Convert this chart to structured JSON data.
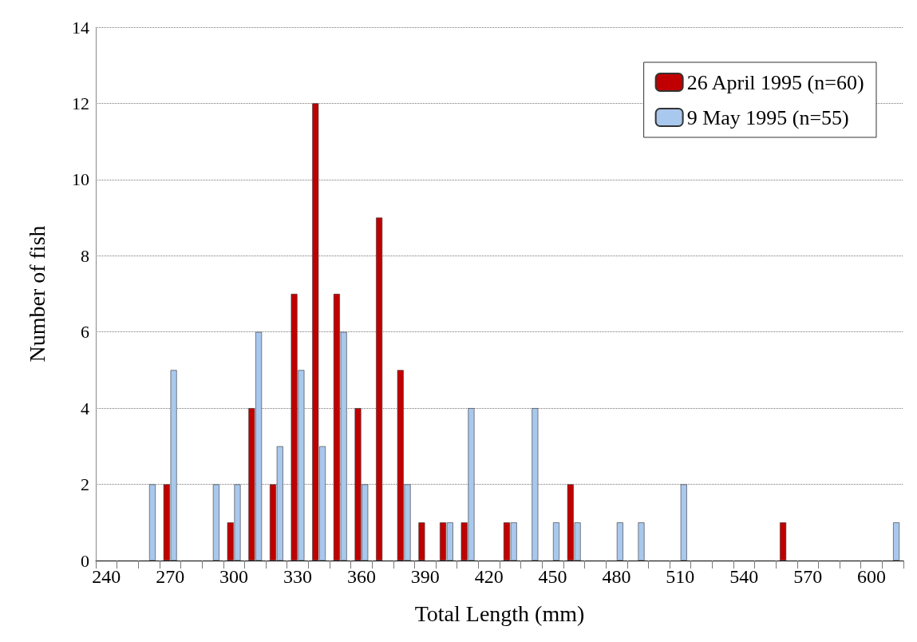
{
  "chart_data": {
    "type": "bar",
    "xlabel": "Total Length (mm)",
    "ylabel": "Number of fish",
    "categories": [
      "240",
      null,
      null,
      "270",
      null,
      null,
      "300",
      null,
      null,
      "330",
      null,
      null,
      "360",
      null,
      null,
      "390",
      null,
      null,
      "420",
      null,
      null,
      "450",
      null,
      null,
      "480",
      null,
      null,
      "510",
      null,
      null,
      "540",
      null,
      null,
      "570",
      null,
      null,
      "600",
      null
    ],
    "series": [
      {
        "name": "26 April 1995 (n=60)",
        "color": "#c00000",
        "values": [
          0,
          0,
          0,
          2,
          0,
          0,
          1,
          4,
          2,
          7,
          12,
          7,
          4,
          9,
          5,
          1,
          1,
          1,
          0,
          1,
          0,
          0,
          2,
          0,
          0,
          0,
          0,
          0,
          0,
          0,
          0,
          0,
          1,
          0,
          0,
          0,
          0,
          0
        ]
      },
      {
        "name": "9 May 1995 (n=55)",
        "color": "#a9c8ee",
        "values": [
          0,
          0,
          2,
          5,
          0,
          2,
          2,
          6,
          3,
          5,
          3,
          6,
          2,
          0,
          2,
          0,
          1,
          4,
          0,
          1,
          4,
          1,
          1,
          0,
          1,
          1,
          0,
          2,
          0,
          0,
          0,
          0,
          0,
          0,
          0,
          0,
          0,
          1
        ]
      }
    ],
    "ylim": [
      0,
      14
    ],
    "yticks": [
      0,
      2,
      4,
      6,
      8,
      10,
      12,
      14
    ],
    "grid": "y",
    "legend": "top right"
  }
}
